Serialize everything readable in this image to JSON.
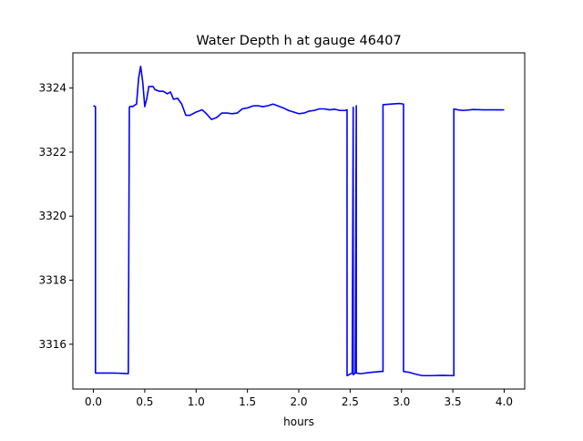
{
  "chart_data": {
    "type": "line",
    "title": "Water Depth h at gauge 46407",
    "xlabel": "hours",
    "ylabel": "",
    "xlim": [
      -0.2,
      4.2
    ],
    "ylim": [
      3314.6,
      3325.1
    ],
    "x_ticks": [
      0.0,
      0.5,
      1.0,
      1.5,
      2.0,
      2.5,
      3.0,
      3.5,
      4.0
    ],
    "x_tick_labels": [
      "0.0",
      "0.5",
      "1.0",
      "1.5",
      "2.0",
      "2.5",
      "3.0",
      "3.5",
      "4.0"
    ],
    "y_ticks": [
      3316,
      3318,
      3320,
      3322,
      3324
    ],
    "y_tick_labels": [
      "3316",
      "3318",
      "3320",
      "3322",
      "3324"
    ],
    "grid": false,
    "legend": "none",
    "colors": {
      "line": "#0000ff",
      "axes": "#000000",
      "background": "#ffffff"
    },
    "series": [
      {
        "x": [
          0.0,
          0.02,
          0.02,
          0.1,
          0.2,
          0.3,
          0.34,
          0.35,
          0.36,
          0.38,
          0.42,
          0.44,
          0.46,
          0.48,
          0.5,
          0.52,
          0.54,
          0.58,
          0.6,
          0.64,
          0.68,
          0.72,
          0.75,
          0.78,
          0.82,
          0.86,
          0.9,
          0.94,
          1.0,
          1.06,
          1.1,
          1.15,
          1.2,
          1.25,
          1.3,
          1.35,
          1.4,
          1.45,
          1.5,
          1.55,
          1.6,
          1.65,
          1.7,
          1.75,
          1.8,
          1.85,
          1.9,
          1.95,
          2.0,
          2.05,
          2.1,
          2.15,
          2.2,
          2.25,
          2.3,
          2.35,
          2.4,
          2.45,
          2.47,
          2.47,
          2.52,
          2.53,
          2.53,
          2.55,
          2.56,
          2.56,
          2.6,
          2.7,
          2.8,
          2.82,
          2.82,
          2.9,
          2.98,
          3.02,
          3.02,
          3.08,
          3.12,
          3.2,
          3.3,
          3.4,
          3.5,
          3.51,
          3.51,
          3.55,
          3.6,
          3.7,
          3.8,
          3.9,
          4.0
        ],
        "y": [
          3323.45,
          3323.42,
          3315.1,
          3315.1,
          3315.1,
          3315.09,
          3315.08,
          3323.4,
          3323.43,
          3323.42,
          3323.5,
          3324.3,
          3324.68,
          3324.2,
          3323.42,
          3323.68,
          3324.05,
          3324.05,
          3323.95,
          3323.9,
          3323.9,
          3323.82,
          3323.88,
          3323.65,
          3323.68,
          3323.5,
          3323.15,
          3323.15,
          3323.25,
          3323.32,
          3323.2,
          3323.02,
          3323.08,
          3323.22,
          3323.22,
          3323.2,
          3323.22,
          3323.35,
          3323.38,
          3323.44,
          3323.45,
          3323.42,
          3323.45,
          3323.5,
          3323.44,
          3323.38,
          3323.3,
          3323.25,
          3323.2,
          3323.22,
          3323.28,
          3323.3,
          3323.35,
          3323.35,
          3323.32,
          3323.34,
          3323.3,
          3323.3,
          3323.32,
          3315.02,
          3315.1,
          3323.4,
          3315.05,
          3315.1,
          3323.45,
          3315.1,
          3315.08,
          3315.12,
          3315.15,
          3315.15,
          3323.48,
          3323.5,
          3323.52,
          3323.5,
          3315.15,
          3315.12,
          3315.08,
          3315.02,
          3315.02,
          3315.03,
          3315.02,
          3315.02,
          3323.35,
          3323.32,
          3323.3,
          3323.33,
          3323.32,
          3323.32,
          3323.32
        ]
      }
    ]
  }
}
